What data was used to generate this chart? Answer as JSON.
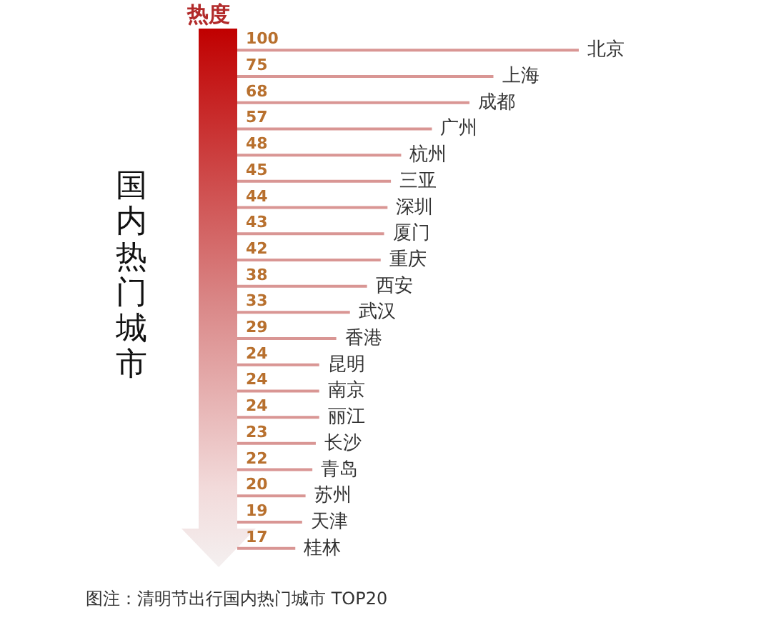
{
  "chart_data": {
    "type": "bar",
    "orientation": "horizontal",
    "xlabel": "热度",
    "ylabel": "国内热门城市",
    "categories": [
      "北京",
      "上海",
      "成都",
      "广州",
      "杭州",
      "三亚",
      "深圳",
      "厦门",
      "重庆",
      "西安",
      "武汉",
      "香港",
      "昆明",
      "南京",
      "丽江",
      "长沙",
      "青岛",
      "苏州",
      "天津",
      "桂林"
    ],
    "values": [
      100,
      75,
      68,
      57,
      48,
      45,
      44,
      43,
      42,
      38,
      33,
      29,
      24,
      24,
      24,
      23,
      22,
      20,
      19,
      17
    ],
    "color": "#d99694",
    "data_labels": true,
    "annotations": [
      "图注：清明节出行国内热门城市 TOP20"
    ]
  }
}
